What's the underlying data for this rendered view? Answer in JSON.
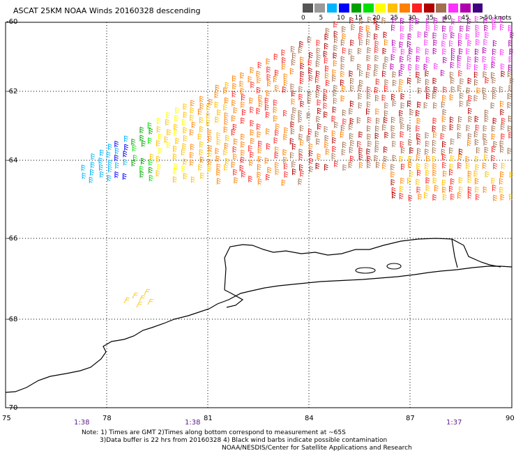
{
  "title": "ASCAT 25KM NOAA Winds 20160328 descending",
  "legend": {
    "colors": [
      "#555555",
      "#999999",
      "#00b4ff",
      "#0000ff",
      "#00a000",
      "#00e000",
      "#ffff00",
      "#ffc000",
      "#ff8000",
      "#ff2020",
      "#b00000",
      "#a07050",
      "#ff30ff",
      "#b000b0",
      "#400080"
    ],
    "ticks": [
      "0",
      "5",
      "10",
      "15",
      "20",
      "25",
      "30",
      "35",
      "40",
      "45",
      ">50 knots"
    ]
  },
  "axes": {
    "lat_labels": [
      "-60",
      "-62",
      "-64",
      "-66",
      "-68",
      "-70"
    ],
    "lon_labels": [
      "75",
      "78",
      "81",
      "84",
      "87",
      "90"
    ],
    "times": [
      "1:38",
      "1:38",
      "1:37"
    ]
  },
  "notes": {
    "line1": "Note: 1) Times are GMT 2)Times along bottom correspond to measurement at ~65S",
    "line2": "3)Data buffer is 22 hrs from 20160328 4) Black wind barbs indicate possible contamination",
    "line3": "NOAA/NESDIS/Center for Satellite Applications and Research"
  }
}
